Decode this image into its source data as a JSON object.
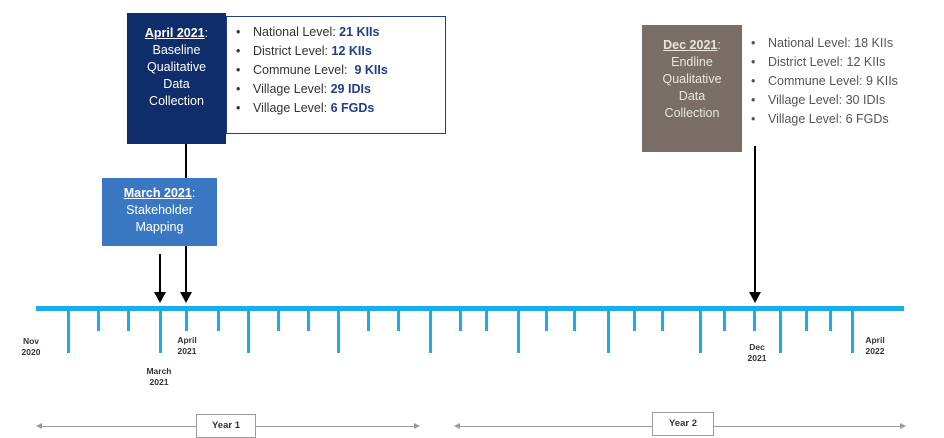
{
  "baseline": {
    "date": "April 2021",
    "title": "Baseline Qualitative Data Collection",
    "items": [
      {
        "label": "National Level: ",
        "value": "21 KIIs"
      },
      {
        "label": "District Level: ",
        "value": "12 KIIs"
      },
      {
        "label": "Commune Level:  ",
        "value": "9 KIIs"
      },
      {
        "label": "Village Level: ",
        "value": "29 IDIs"
      },
      {
        "label": "Village Level: ",
        "value": "6 FGDs"
      }
    ],
    "colors": {
      "box": "#0f2d6b",
      "value": "#1f3f8a"
    }
  },
  "stakeholder": {
    "date": "March 2021",
    "title": "Stakeholder Mapping",
    "color": "#3b78c4"
  },
  "endline": {
    "date": "Dec 2021",
    "title": "Endline Qualitative Data Collection",
    "items": [
      {
        "label": "National Level: ",
        "value": "18 KIIs"
      },
      {
        "label": "District Level: ",
        "value": "12 KIIs"
      },
      {
        "label": "Commune Level: ",
        "value": "9 KIIs"
      },
      {
        "label": "Village Level: ",
        "value": "30 IDIs"
      },
      {
        "label": "Village Level: ",
        "value": "6 FGDs"
      }
    ],
    "color": "#7a6e66"
  },
  "timeline": {
    "color": "#1aaee8",
    "labels": {
      "nov2020": [
        "Nov",
        "2020"
      ],
      "march2021": [
        "March",
        "2021"
      ],
      "april2021": [
        "April",
        "2021"
      ],
      "dec2021": [
        "Dec",
        "2021"
      ],
      "april2022": [
        "April",
        "2022"
      ]
    }
  },
  "years": {
    "year1": "Year 1",
    "year2": "Year 2"
  }
}
